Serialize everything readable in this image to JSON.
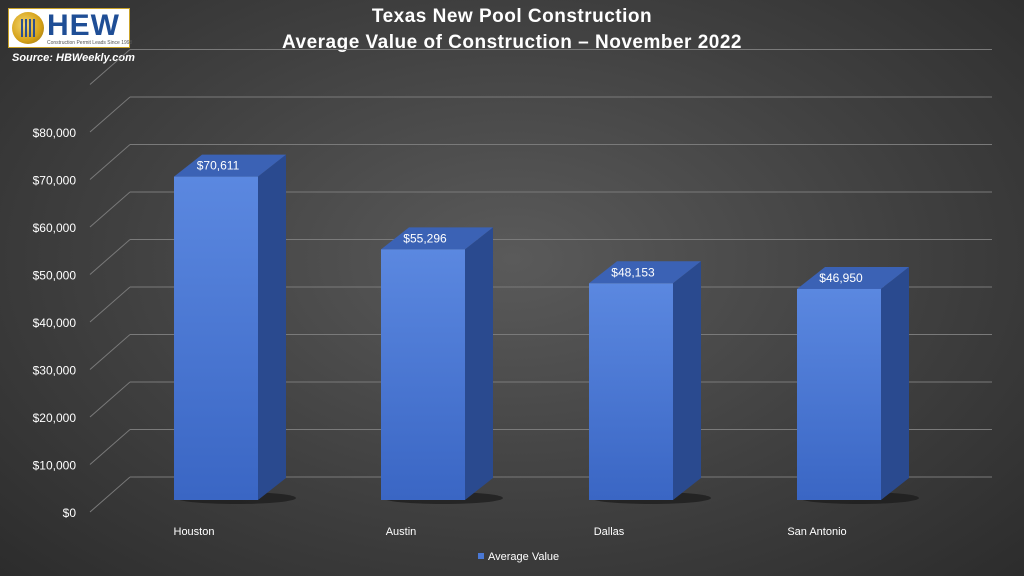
{
  "header": {
    "title_line1": "Texas New Pool Construction",
    "title_line2": "Average Value of Construction – November 2022",
    "source": "Source: HBWeekly.com",
    "logo_text": "HEW",
    "logo_tagline": "Construction Permit Leads Since 1998"
  },
  "chart_data": {
    "type": "bar",
    "categories": [
      "Houston",
      "Austin",
      "Dallas",
      "San Antonio"
    ],
    "series": [
      {
        "name": "Average Value",
        "values": [
          70611,
          55296,
          48153,
          46950
        ]
      }
    ],
    "data_labels": [
      "$70,611",
      "$55,296",
      "$48,153",
      "$46,950"
    ],
    "yticks": [
      "$0",
      "$10,000",
      "$20,000",
      "$30,000",
      "$40,000",
      "$50,000",
      "$60,000",
      "$70,000",
      "$80,000"
    ],
    "ylim": [
      0,
      90000
    ],
    "grid": true,
    "legend": "bottom-center",
    "style": "3d-column",
    "colors": {
      "bar_front": "#4a78d4",
      "bar_side": "#2a4a8f",
      "bar_top": "#3b62b5"
    }
  }
}
